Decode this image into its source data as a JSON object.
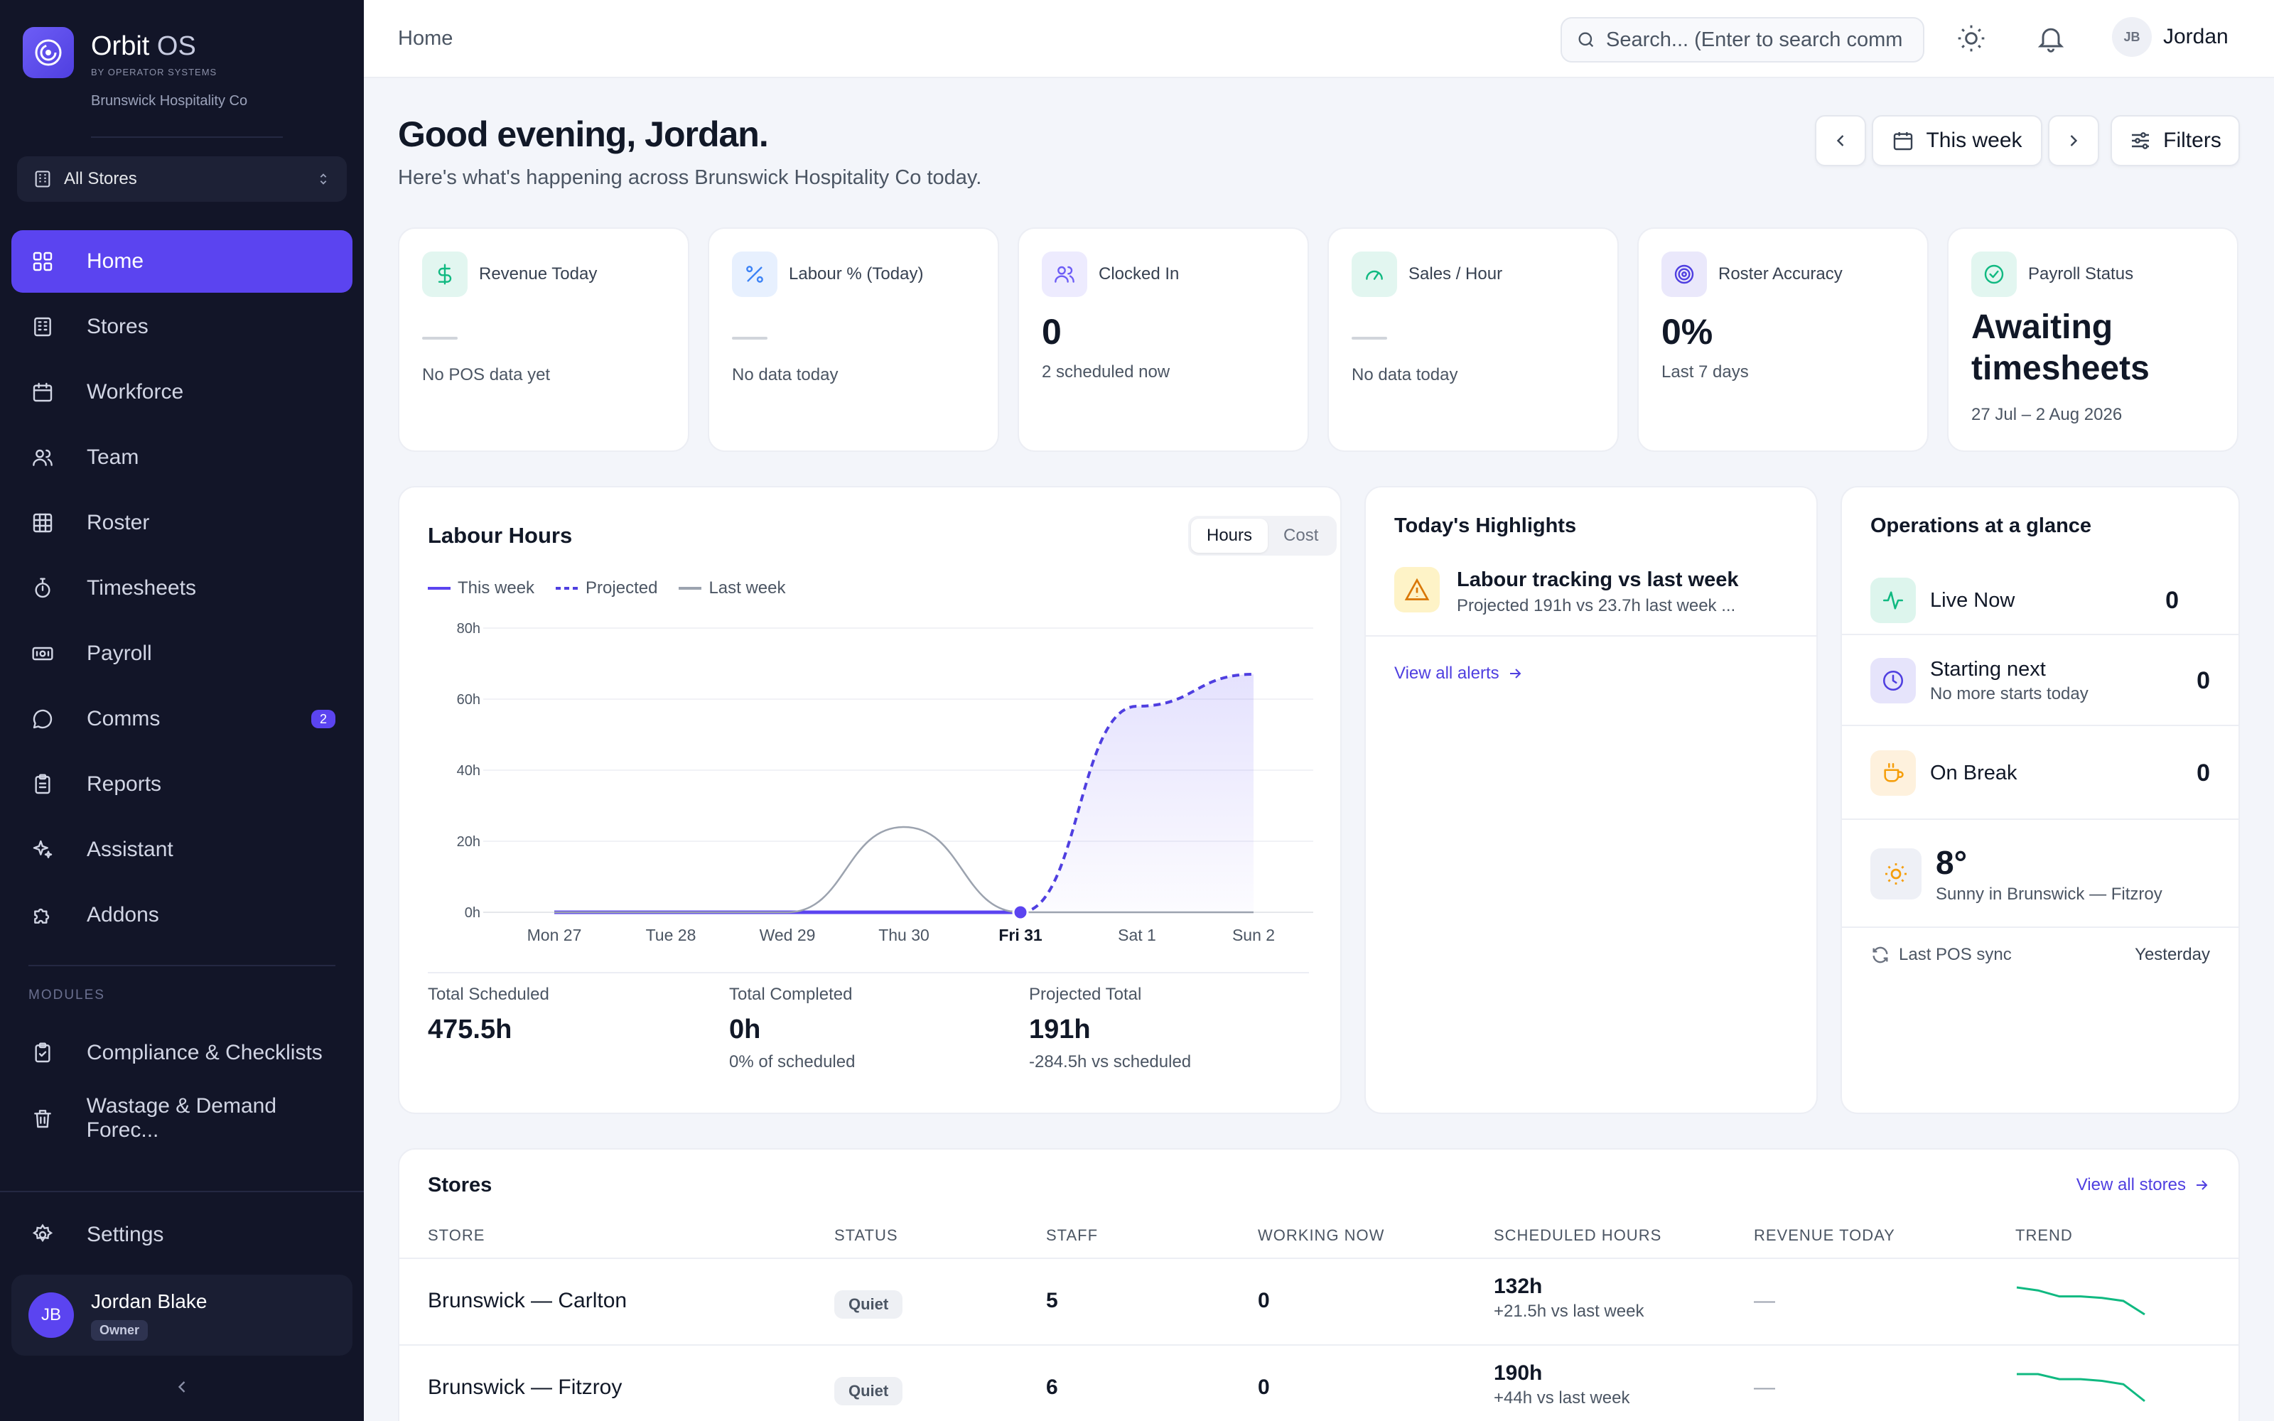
{
  "brand": {
    "name": "Orbit",
    "name_suffix": "OS",
    "byline": "BY OPERATOR SYSTEMS",
    "org": "Brunswick Hospitality Co"
  },
  "store_selector": {
    "value": "All Stores"
  },
  "nav": {
    "items": [
      {
        "label": "Home",
        "icon": "grid-icon",
        "active": true
      },
      {
        "label": "Stores",
        "icon": "building-icon"
      },
      {
        "label": "Workforce",
        "icon": "calendar-icon"
      },
      {
        "label": "Team",
        "icon": "users-icon"
      },
      {
        "label": "Roster",
        "icon": "table-icon"
      },
      {
        "label": "Timesheets",
        "icon": "stopwatch-icon"
      },
      {
        "label": "Payroll",
        "icon": "banknote-icon"
      },
      {
        "label": "Comms",
        "icon": "chat-icon",
        "badge": "2"
      },
      {
        "label": "Reports",
        "icon": "clipboard-icon"
      },
      {
        "label": "Assistant",
        "icon": "sparkles-icon"
      },
      {
        "label": "Addons",
        "icon": "puzzle-icon"
      }
    ],
    "modules_label": "MODULES",
    "modules": [
      {
        "label": "Compliance & Checklists",
        "icon": "clipboard-check-icon"
      },
      {
        "label": "Wastage & Demand Forec...",
        "icon": "trash-icon"
      }
    ],
    "settings_label": "Settings"
  },
  "user": {
    "name": "Jordan Blake",
    "initials": "JB",
    "role": "Owner",
    "first_name": "Jordan"
  },
  "topbar": {
    "breadcrumb": "Home",
    "search_placeholder": "Search... (Enter to search comm"
  },
  "header": {
    "greeting": "Good evening, Jordan.",
    "subtitle": "Here's what's happening across Brunswick Hospitality Co today.",
    "period_label": "This week",
    "filters_label": "Filters"
  },
  "kpis": [
    {
      "title": "Revenue Today",
      "value": "",
      "sub": "No POS data yet",
      "icon": "dollar-icon",
      "color": "#10b981"
    },
    {
      "title": "Labour % (Today)",
      "value": "",
      "sub": "No data today",
      "icon": "percent-icon",
      "color": "#3b82f6"
    },
    {
      "title": "Clocked In",
      "value": "0",
      "sub": "2 scheduled now",
      "icon": "users-icon",
      "color": "#6d5df6"
    },
    {
      "title": "Sales / Hour",
      "value": "",
      "sub": "No data today",
      "icon": "gauge-icon",
      "color": "#10b981"
    },
    {
      "title": "Roster Accuracy",
      "value": "0%",
      "sub": "Last 7 days",
      "icon": "target-icon",
      "color": "#4f3fe0"
    },
    {
      "title": "Payroll Status",
      "value": "Awaiting timesheets",
      "sub": "27 Jul – 2 Aug 2026",
      "icon": "check-circle-icon",
      "color": "#10b981"
    }
  ],
  "labour": {
    "title": "Labour Hours",
    "toggle": [
      "Hours",
      "Cost"
    ],
    "legend": [
      "This week",
      "Projected",
      "Last week"
    ],
    "stats": [
      {
        "label": "Total Scheduled",
        "value": "475.5h",
        "sub": ""
      },
      {
        "label": "Total Completed",
        "value": "0h",
        "sub": "0% of scheduled"
      },
      {
        "label": "Projected Total",
        "value": "191h",
        "sub": "-284.5h vs scheduled"
      }
    ]
  },
  "chart_data": {
    "type": "line",
    "title": "Labour Hours",
    "categories": [
      "Mon 27",
      "Tue 28",
      "Wed 29",
      "Thu 30",
      "Fri 31",
      "Sat 1",
      "Sun 2"
    ],
    "highlight_category": "Fri 31",
    "y_ticks": [
      "0h",
      "20h",
      "40h",
      "60h",
      "80h"
    ],
    "ylim": [
      0,
      80
    ],
    "grid": true,
    "legend_position": "top-left",
    "series": [
      {
        "name": "This week",
        "values": [
          0,
          0,
          0,
          0,
          0,
          null,
          null
        ],
        "color": "#5b44f0",
        "style": "solid"
      },
      {
        "name": "Projected",
        "values": [
          null,
          null,
          null,
          null,
          0,
          58,
          67
        ],
        "color": "#4f3fe0",
        "style": "dashed"
      },
      {
        "name": "Last week",
        "values": [
          0,
          0,
          0,
          24,
          0,
          0,
          0
        ],
        "color": "#9ca3af",
        "style": "solid"
      }
    ]
  },
  "highlights": {
    "title": "Today's Highlights",
    "items": [
      {
        "title": "Labour tracking vs last week",
        "sub": "Projected 191h vs 23.7h last week ...",
        "icon": "warning-icon"
      }
    ],
    "link": "View all alerts"
  },
  "ops": {
    "title": "Operations at a glance",
    "rows": [
      {
        "label": "Live Now",
        "sub": "",
        "value": "0",
        "icon": "activity-icon",
        "color": "#10b981"
      },
      {
        "label": "Starting next",
        "sub": "No more starts today",
        "value": "0",
        "icon": "clock-icon",
        "color": "#4f3fe0"
      },
      {
        "label": "On Break",
        "sub": "",
        "value": "0",
        "icon": "coffee-icon",
        "color": "#f59e0b"
      }
    ],
    "weather": {
      "temp": "8°",
      "desc": "Sunny in Brunswick — Fitzroy",
      "icon": "sun-icon"
    },
    "pos_sync": {
      "label": "Last POS sync",
      "value": "Yesterday"
    }
  },
  "stores": {
    "title": "Stores",
    "link": "View all stores",
    "columns": [
      "STORE",
      "STATUS",
      "STAFF",
      "WORKING NOW",
      "SCHEDULED HOURS",
      "REVENUE TODAY",
      "TREND"
    ],
    "rows": [
      {
        "store": "Brunswick — Carlton",
        "status": "Quiet",
        "staff": "5",
        "working": "0",
        "hours": "132h",
        "hours_delta": "+21.5h vs last week",
        "revenue": "—",
        "trend": [
          10,
          8,
          4,
          4,
          3,
          1,
          -8
        ]
      },
      {
        "store": "Brunswick — Fitzroy",
        "status": "Quiet",
        "staff": "6",
        "working": "0",
        "hours": "190h",
        "hours_delta": "+44h vs last week",
        "revenue": "—",
        "trend": [
          10,
          10,
          7,
          7,
          6,
          4,
          -6
        ]
      }
    ]
  }
}
